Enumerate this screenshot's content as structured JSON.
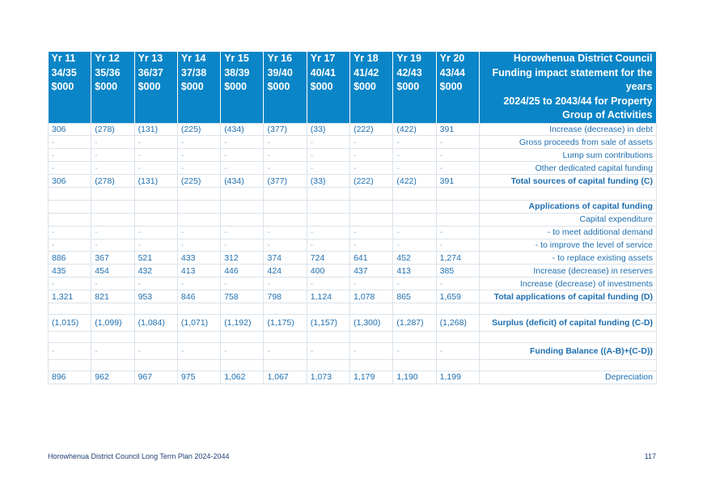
{
  "header": {
    "years": [
      {
        "yr": "Yr 11",
        "span": "34/35",
        "unit": "$000"
      },
      {
        "yr": "Yr 12",
        "span": "35/36",
        "unit": "$000"
      },
      {
        "yr": "Yr 13",
        "span": "36/37",
        "unit": "$000"
      },
      {
        "yr": "Yr 14",
        "span": "37/38",
        "unit": "$000"
      },
      {
        "yr": "Yr 15",
        "span": "38/39",
        "unit": "$000"
      },
      {
        "yr": "Yr 16",
        "span": "39/40",
        "unit": "$000"
      },
      {
        "yr": "Yr 17",
        "span": "40/41",
        "unit": "$000"
      },
      {
        "yr": "Yr 18",
        "span": "41/42",
        "unit": "$000"
      },
      {
        "yr": "Yr 19",
        "span": "42/43",
        "unit": "$000"
      },
      {
        "yr": "Yr 20",
        "span": "43/44",
        "unit": "$000"
      }
    ],
    "title_lines": [
      "Horowhenua District Council",
      "Funding impact statement for the years",
      "2024/25 to 2043/44 for Property",
      "Group of Activities"
    ]
  },
  "rows": [
    {
      "kind": "normal",
      "label": "Increase (decrease) in debt",
      "values": [
        "306",
        "(278)",
        "(131)",
        "(225)",
        "(434)",
        "(377)",
        "(33)",
        "(222)",
        "(422)",
        "391"
      ]
    },
    {
      "kind": "dash",
      "label": "Gross proceeds from sale of assets",
      "values": [
        "-",
        "-",
        "-",
        "-",
        "-",
        "-",
        "-",
        "-",
        "-",
        "-"
      ]
    },
    {
      "kind": "dash",
      "label": "Lump sum contributions",
      "values": [
        "-",
        "-",
        "-",
        "-",
        "-",
        "-",
        "-",
        "-",
        "-",
        "-"
      ]
    },
    {
      "kind": "dash",
      "label": "Other dedicated capital funding",
      "values": [
        "-",
        "-",
        "-",
        "-",
        "-",
        "-",
        "-",
        "-",
        "-",
        "-"
      ]
    },
    {
      "kind": "total",
      "label": "Total sources of capital funding (C)",
      "values": [
        "306",
        "(278)",
        "(131)",
        "(225)",
        "(434)",
        "(377)",
        "(33)",
        "(222)",
        "(422)",
        "391"
      ]
    },
    {
      "kind": "blank",
      "label": "",
      "values": [
        "",
        "",
        "",
        "",
        "",
        "",
        "",
        "",
        "",
        ""
      ]
    },
    {
      "kind": "heading",
      "label": "Applications of capital funding",
      "values": [
        "",
        "",
        "",
        "",
        "",
        "",
        "",
        "",
        "",
        ""
      ]
    },
    {
      "kind": "normal",
      "label": "Capital expenditure",
      "values": [
        "",
        "",
        "",
        "",
        "",
        "",
        "",
        "",
        "",
        ""
      ]
    },
    {
      "kind": "dash",
      "label": "- to meet additional demand",
      "values": [
        "-",
        "-",
        "-",
        "-",
        "-",
        "-",
        "-",
        "-",
        "-",
        "-"
      ]
    },
    {
      "kind": "dash",
      "label": "- to improve the level of service",
      "values": [
        "-",
        "-",
        "-",
        "-",
        "-",
        "-",
        "-",
        "-",
        "-",
        "-"
      ]
    },
    {
      "kind": "normal",
      "label": "- to replace existing assets",
      "values": [
        "886",
        "367",
        "521",
        "433",
        "312",
        "374",
        "724",
        "641",
        "452",
        "1,274"
      ]
    },
    {
      "kind": "normal",
      "label": "Increase (decrease) in reserves",
      "values": [
        "435",
        "454",
        "432",
        "413",
        "446",
        "424",
        "400",
        "437",
        "413",
        "385"
      ]
    },
    {
      "kind": "dash",
      "label": "Increase (decrease) of investments",
      "values": [
        "-",
        "-",
        "-",
        "-",
        "-",
        "-",
        "-",
        "-",
        "-",
        "-"
      ]
    },
    {
      "kind": "total",
      "label": "Total applications of capital funding (D)",
      "values": [
        "1,321",
        "821",
        "953",
        "846",
        "758",
        "798",
        "1,124",
        "1,078",
        "865",
        "1,659"
      ]
    },
    {
      "kind": "gap",
      "label": "",
      "values": [
        "",
        "",
        "",
        "",
        "",
        "",
        "",
        "",
        "",
        ""
      ]
    },
    {
      "kind": "total tall",
      "label": "Surplus (deficit) of capital funding (C-D)",
      "values": [
        "(1,015)",
        "(1,099)",
        "(1,084)",
        "(1,071)",
        "(1,192)",
        "(1,175)",
        "(1,157)",
        "(1,300)",
        "(1,287)",
        "(1,268)"
      ]
    },
    {
      "kind": "gap",
      "label": "",
      "values": [
        "",
        "",
        "",
        "",
        "",
        "",
        "",
        "",
        "",
        ""
      ]
    },
    {
      "kind": "dash total tall",
      "label": "Funding Balance ((A-B)+(C-D))",
      "values": [
        "-",
        "-",
        "-",
        "-",
        "-",
        "-",
        "-",
        "-",
        "-",
        "-"
      ]
    },
    {
      "kind": "gap",
      "label": "",
      "values": [
        "",
        "",
        "",
        "",
        "",
        "",
        "",
        "",
        "",
        ""
      ]
    },
    {
      "kind": "normal",
      "label": "Depreciation",
      "values": [
        "896",
        "962",
        "967",
        "975",
        "1,062",
        "1,067",
        "1,073",
        "1,179",
        "1,190",
        "1,199"
      ]
    }
  ],
  "footer": {
    "left": "Horowhenua District Council Long Term Plan 2024-2044",
    "page": "117"
  }
}
